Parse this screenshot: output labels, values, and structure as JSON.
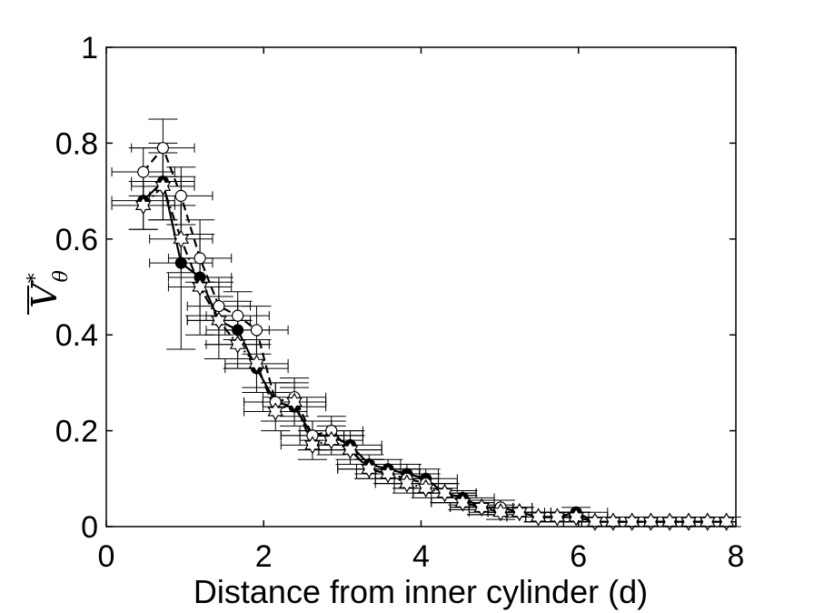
{
  "chart_data": {
    "type": "line",
    "xlabel": "Distance from inner cylinder (d)",
    "ylabel": {
      "base": "V",
      "superscript": "*",
      "subscript": "θ"
    },
    "xlim": [
      0,
      8
    ],
    "ylim": [
      0,
      1
    ],
    "xticks": [
      "0",
      "2",
      "4",
      "6",
      "8"
    ],
    "yticks": [
      "0",
      "0.2",
      "0.4",
      "0.6",
      "0.8",
      "1"
    ],
    "grid": false,
    "legend": "none",
    "series": [
      {
        "marker": "filled-circle",
        "line": "solid",
        "x": [
          0.47,
          0.72,
          0.95,
          1.19,
          1.43,
          1.67,
          1.91,
          2.15,
          2.39,
          2.62,
          2.86,
          3.1,
          3.34,
          3.58,
          3.82,
          4.06,
          4.3,
          4.53,
          4.77,
          5.01,
          5.25,
          5.49,
          5.73,
          5.97,
          6.21,
          6.44,
          6.68,
          6.92,
          7.16,
          7.4,
          7.64,
          7.88
        ],
        "values": [
          0.68,
          0.72,
          0.55,
          0.52,
          0.43,
          0.41,
          0.33,
          0.26,
          0.25,
          0.19,
          0.19,
          0.17,
          0.13,
          0.12,
          0.11,
          0.1,
          0.07,
          0.06,
          0.04,
          0.04,
          0.03,
          0.02,
          0.02,
          0.03,
          0.01,
          0.01,
          0.01,
          0.01,
          0.01,
          0.01,
          0.01,
          0.01
        ],
        "yerr": [
          0.06,
          0.08,
          0.18,
          0.12,
          0.08,
          0.06,
          0.05,
          0.04,
          0.04,
          0.03,
          0.03,
          0.03,
          0.02,
          0.02,
          0.02,
          0.02,
          0.02,
          0.015,
          0.015,
          0.015,
          0.01,
          0.01,
          0.01,
          0.01,
          0.01,
          0.01,
          0.01,
          0.01,
          0.01,
          0.01,
          0.01,
          0.01
        ],
        "xerr": 0.4
      },
      {
        "marker": "open-circle",
        "line": "dashed",
        "x": [
          0.47,
          0.72,
          0.95,
          1.19,
          1.43,
          1.67,
          1.91,
          2.15,
          2.39,
          2.62,
          2.86,
          3.1,
          3.34,
          3.58,
          3.82,
          4.06,
          4.3,
          4.53,
          4.77,
          5.01,
          5.25,
          5.49,
          5.73,
          5.97,
          6.21,
          6.44,
          6.68,
          6.92,
          7.16,
          7.4,
          7.64,
          7.88
        ],
        "values": [
          0.74,
          0.79,
          0.69,
          0.56,
          0.46,
          0.44,
          0.41,
          0.26,
          0.27,
          0.19,
          0.2,
          0.16,
          0.12,
          0.11,
          0.1,
          0.09,
          0.07,
          0.05,
          0.04,
          0.04,
          0.03,
          0.02,
          0.02,
          0.02,
          0.01,
          0.01,
          0.01,
          0.01,
          0.01,
          0.01,
          0.01,
          0.01
        ],
        "yerr": [
          0.05,
          0.06,
          0.06,
          0.05,
          0.06,
          0.05,
          0.05,
          0.04,
          0.04,
          0.03,
          0.03,
          0.03,
          0.02,
          0.02,
          0.02,
          0.02,
          0.02,
          0.015,
          0.015,
          0.015,
          0.01,
          0.01,
          0.01,
          0.01,
          0.01,
          0.01,
          0.01,
          0.01,
          0.01,
          0.01,
          0.01,
          0.01
        ],
        "xerr": 0.4
      },
      {
        "marker": "open-star",
        "line": "dash-dot",
        "x": [
          0.47,
          0.72,
          0.95,
          1.19,
          1.43,
          1.67,
          1.91,
          2.15,
          2.39,
          2.62,
          2.86,
          3.1,
          3.34,
          3.58,
          3.82,
          4.06,
          4.3,
          4.53,
          4.77,
          5.01,
          5.25,
          5.49,
          5.73,
          5.97,
          6.21,
          6.44,
          6.68,
          6.92,
          7.16,
          7.4,
          7.64,
          7.88
        ],
        "values": [
          0.67,
          0.71,
          0.6,
          0.5,
          0.43,
          0.38,
          0.34,
          0.24,
          0.26,
          0.17,
          0.18,
          0.16,
          0.12,
          0.11,
          0.09,
          0.08,
          0.07,
          0.05,
          0.04,
          0.03,
          0.03,
          0.02,
          0.02,
          0.02,
          0.01,
          0.01,
          0.01,
          0.01,
          0.01,
          0.01,
          0.01,
          0.01
        ],
        "yerr": [
          0.05,
          0.07,
          0.07,
          0.06,
          0.05,
          0.05,
          0.05,
          0.04,
          0.04,
          0.03,
          0.03,
          0.03,
          0.02,
          0.02,
          0.02,
          0.02,
          0.02,
          0.015,
          0.015,
          0.015,
          0.01,
          0.01,
          0.01,
          0.01,
          0.01,
          0.01,
          0.01,
          0.01,
          0.01,
          0.01,
          0.01,
          0.01
        ],
        "xerr": 0.4
      }
    ]
  }
}
